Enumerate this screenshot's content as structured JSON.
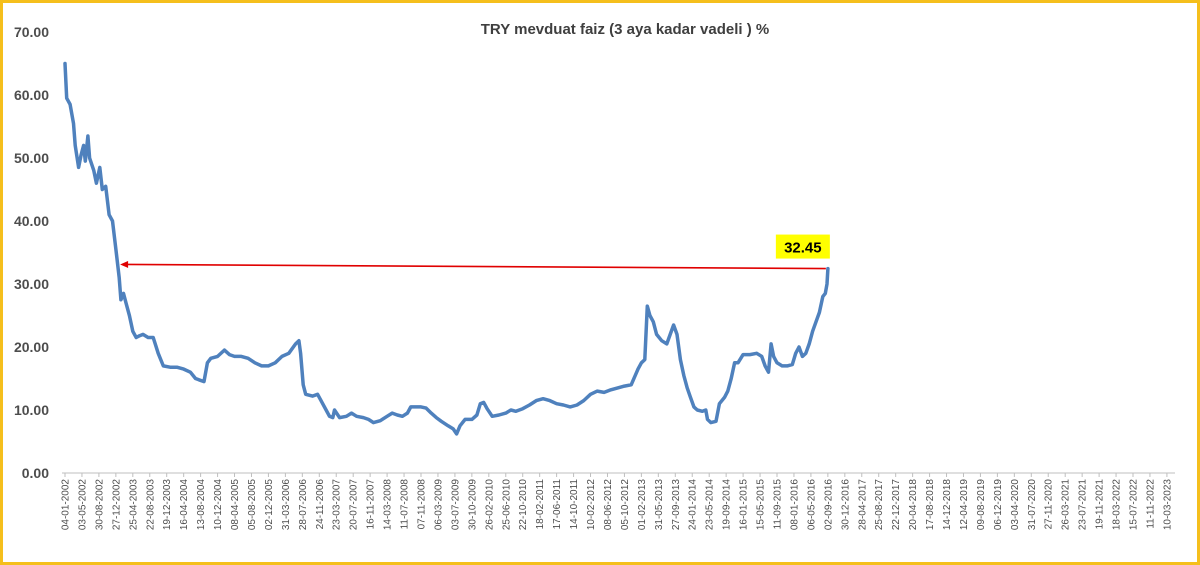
{
  "chart_data": {
    "type": "line",
    "title": "TRY mevduat faiz (3 aya kadar vadeli ) %",
    "xlabel": "",
    "ylabel": "",
    "ylim": [
      0,
      70
    ],
    "yticks": [
      "0.00",
      "10.00",
      "20.00",
      "30.00",
      "40.00",
      "50.00",
      "60.00",
      "70.00"
    ],
    "grid": false,
    "legend": "none",
    "colors": {
      "series": "#4f81bd",
      "reference_line": "#e00000",
      "callout_bg": "#ffff00",
      "frame": "#f5bf1c"
    },
    "xticks": [
      "04-01-2002",
      "03-05-2002",
      "30-08-2002",
      "27-12-2002",
      "25-04-2003",
      "22-08-2003",
      "19-12-2003",
      "16-04-2004",
      "13-08-2004",
      "10-12-2004",
      "08-04-2005",
      "05-08-2005",
      "02-12-2005",
      "31-03-2006",
      "28-07-2006",
      "24-11-2006",
      "23-03-2007",
      "20-07-2007",
      "16-11-2007",
      "14-03-2008",
      "11-07-2008",
      "07-11-2008",
      "06-03-2009",
      "03-07-2009",
      "30-10-2009",
      "26-02-2010",
      "25-06-2010",
      "22-10-2010",
      "18-02-2011",
      "17-06-2011",
      "14-10-2011",
      "10-02-2012",
      "08-06-2012",
      "05-10-2012",
      "01-02-2013",
      "31-05-2013",
      "27-09-2013",
      "24-01-2014",
      "23-05-2014",
      "19-09-2014",
      "16-01-2015",
      "15-05-2015",
      "11-09-2015",
      "08-01-2016",
      "06-05-2016",
      "02-09-2016",
      "30-12-2016",
      "28-04-2017",
      "25-08-2017",
      "22-12-2017",
      "20-04-2018",
      "17-08-2018",
      "14-12-2018",
      "12-04-2019",
      "09-08-2019",
      "06-12-2019",
      "03-04-2020",
      "31-07-2020",
      "27-11-2020",
      "26-03-2021",
      "23-07-2021",
      "19-11-2021",
      "18-03-2022",
      "15-07-2022",
      "11-11-2022",
      "10-03-2023"
    ],
    "series": [
      {
        "points": [
          [
            0.0,
            65.0
          ],
          [
            0.1,
            59.5
          ],
          [
            0.3,
            58.5
          ],
          [
            0.5,
            55.5
          ],
          [
            0.6,
            52.0
          ],
          [
            0.8,
            48.5
          ],
          [
            0.95,
            50.5
          ],
          [
            1.1,
            52.0
          ],
          [
            1.2,
            49.5
          ],
          [
            1.35,
            53.5
          ],
          [
            1.45,
            50.0
          ],
          [
            1.7,
            48.0
          ],
          [
            1.85,
            46.0
          ],
          [
            2.05,
            48.5
          ],
          [
            2.2,
            45.0
          ],
          [
            2.4,
            45.5
          ],
          [
            2.6,
            41.0
          ],
          [
            2.8,
            40.0
          ],
          [
            3.0,
            35.5
          ],
          [
            3.2,
            31.0
          ],
          [
            3.3,
            27.5
          ],
          [
            3.45,
            28.5
          ],
          [
            3.6,
            27.0
          ],
          [
            3.8,
            25.0
          ],
          [
            4.0,
            22.5
          ],
          [
            4.2,
            21.5
          ],
          [
            4.4,
            21.8
          ],
          [
            4.6,
            22.0
          ],
          [
            4.9,
            21.5
          ],
          [
            5.2,
            21.5
          ],
          [
            5.5,
            19.0
          ],
          [
            5.8,
            17.0
          ],
          [
            6.2,
            16.8
          ],
          [
            6.6,
            16.8
          ],
          [
            7.0,
            16.5
          ],
          [
            7.4,
            16.0
          ],
          [
            7.7,
            15.0
          ],
          [
            7.9,
            14.8
          ],
          [
            8.2,
            14.5
          ],
          [
            8.4,
            17.5
          ],
          [
            8.6,
            18.2
          ],
          [
            9.0,
            18.5
          ],
          [
            9.4,
            19.5
          ],
          [
            9.7,
            18.8
          ],
          [
            10.0,
            18.5
          ],
          [
            10.4,
            18.5
          ],
          [
            10.8,
            18.2
          ],
          [
            11.2,
            17.5
          ],
          [
            11.6,
            17.0
          ],
          [
            12.0,
            17.0
          ],
          [
            12.4,
            17.5
          ],
          [
            12.8,
            18.5
          ],
          [
            13.2,
            19.0
          ],
          [
            13.6,
            20.5
          ],
          [
            13.8,
            21.0
          ],
          [
            13.9,
            19.0
          ],
          [
            14.05,
            14.0
          ],
          [
            14.2,
            12.5
          ],
          [
            14.6,
            12.2
          ],
          [
            14.9,
            12.5
          ],
          [
            15.1,
            11.5
          ],
          [
            15.4,
            10.0
          ],
          [
            15.6,
            9.0
          ],
          [
            15.8,
            8.8
          ],
          [
            15.9,
            10.0
          ],
          [
            16.2,
            8.8
          ],
          [
            16.6,
            9.0
          ],
          [
            16.9,
            9.5
          ],
          [
            17.2,
            9.0
          ],
          [
            17.6,
            8.8
          ],
          [
            17.9,
            8.5
          ],
          [
            18.2,
            8.0
          ],
          [
            18.6,
            8.3
          ],
          [
            19.0,
            9.0
          ],
          [
            19.3,
            9.5
          ],
          [
            19.6,
            9.2
          ],
          [
            19.9,
            9.0
          ],
          [
            20.2,
            9.5
          ],
          [
            20.4,
            10.5
          ],
          [
            20.7,
            10.5
          ],
          [
            21.0,
            10.5
          ],
          [
            21.3,
            10.3
          ],
          [
            21.6,
            9.5
          ],
          [
            21.9,
            8.8
          ],
          [
            22.2,
            8.2
          ],
          [
            22.6,
            7.5
          ],
          [
            22.9,
            7.0
          ],
          [
            23.1,
            6.2
          ],
          [
            23.3,
            7.5
          ],
          [
            23.6,
            8.5
          ],
          [
            24.0,
            8.5
          ],
          [
            24.3,
            9.2
          ],
          [
            24.5,
            11.0
          ],
          [
            24.7,
            11.2
          ],
          [
            24.9,
            10.2
          ],
          [
            25.2,
            9.0
          ],
          [
            25.6,
            9.2
          ],
          [
            26.0,
            9.5
          ],
          [
            26.3,
            10.0
          ],
          [
            26.6,
            9.8
          ],
          [
            27.0,
            10.2
          ],
          [
            27.4,
            10.8
          ],
          [
            27.8,
            11.5
          ],
          [
            28.2,
            11.8
          ],
          [
            28.6,
            11.5
          ],
          [
            29.0,
            11.0
          ],
          [
            29.4,
            10.8
          ],
          [
            29.8,
            10.5
          ],
          [
            30.2,
            10.8
          ],
          [
            30.6,
            11.5
          ],
          [
            31.0,
            12.5
          ],
          [
            31.4,
            13.0
          ],
          [
            31.8,
            12.8
          ],
          [
            32.2,
            13.2
          ],
          [
            32.6,
            13.5
          ],
          [
            33.0,
            13.8
          ],
          [
            33.4,
            14.0
          ],
          [
            33.8,
            16.5
          ],
          [
            34.0,
            17.5
          ],
          [
            34.2,
            18.0
          ],
          [
            34.35,
            26.5
          ],
          [
            34.5,
            25.0
          ],
          [
            34.7,
            24.0
          ],
          [
            34.9,
            22.0
          ],
          [
            35.2,
            21.0
          ],
          [
            35.5,
            20.5
          ],
          [
            35.7,
            22.0
          ],
          [
            35.9,
            23.5
          ],
          [
            36.1,
            22.0
          ],
          [
            36.3,
            18.0
          ],
          [
            36.5,
            15.5
          ],
          [
            36.7,
            13.5
          ],
          [
            36.9,
            12.0
          ],
          [
            37.1,
            10.5
          ],
          [
            37.3,
            10.0
          ],
          [
            37.6,
            9.8
          ],
          [
            37.8,
            10.0
          ],
          [
            37.9,
            8.5
          ],
          [
            38.1,
            8.0
          ],
          [
            38.4,
            8.2
          ],
          [
            38.6,
            11.0
          ],
          [
            38.9,
            12.0
          ],
          [
            39.1,
            13.0
          ],
          [
            39.3,
            15.0
          ],
          [
            39.5,
            17.5
          ],
          [
            39.7,
            17.5
          ],
          [
            40.0,
            18.8
          ],
          [
            40.4,
            18.8
          ],
          [
            40.8,
            19.0
          ],
          [
            41.1,
            18.5
          ],
          [
            41.3,
            17.0
          ],
          [
            41.5,
            16.0
          ],
          [
            41.65,
            20.5
          ],
          [
            41.8,
            18.5
          ],
          [
            42.0,
            17.5
          ],
          [
            42.3,
            17.0
          ],
          [
            42.6,
            17.0
          ],
          [
            42.9,
            17.2
          ],
          [
            43.1,
            19.0
          ],
          [
            43.3,
            20.0
          ],
          [
            43.5,
            18.5
          ],
          [
            43.7,
            19.0
          ],
          [
            43.9,
            20.5
          ],
          [
            44.1,
            22.5
          ],
          [
            44.3,
            24.0
          ],
          [
            44.5,
            25.5
          ],
          [
            44.7,
            28.0
          ],
          [
            44.85,
            28.5
          ],
          [
            44.95,
            30.0
          ],
          [
            45.0,
            32.45
          ]
        ]
      }
    ],
    "annotations": {
      "callout": "32.45"
    }
  }
}
